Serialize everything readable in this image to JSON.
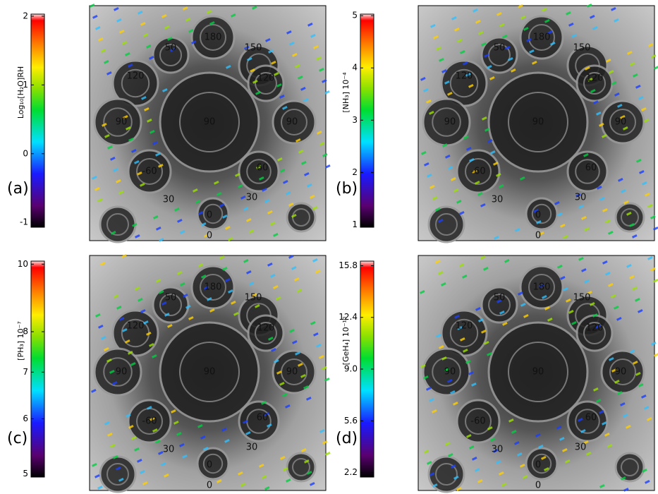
{
  "chart_data": [
    {
      "type": "colorbar",
      "panel_label": "(a)",
      "axis_label": "Log₁₀[H₂O]RH",
      "ylim": [
        -1.07,
        2.03
      ],
      "yticks": [
        -1,
        0,
        1,
        2
      ],
      "log": false
    },
    {
      "type": "colorbar",
      "panel_label": "(b)",
      "axis_label": "[NH₃]  10⁻⁴",
      "ylim": [
        0.95,
        5.03
      ],
      "yticks": [
        1,
        2,
        3,
        4,
        5
      ],
      "log": false
    },
    {
      "type": "colorbar",
      "panel_label": "(c)",
      "axis_label": "[PH₃]  10⁻⁷",
      "ylim": [
        4.95,
        10.1
      ],
      "yticks": [
        5,
        6,
        7,
        8,
        10
      ],
      "log": true
    },
    {
      "type": "colorbar",
      "panel_label": "(d)",
      "axis_label": "[GeH₄]  10⁻¹⁰",
      "ylim": [
        1.9,
        16.1
      ],
      "yticks": [
        {
          "value": 2.2,
          "label": "2.2"
        },
        {
          "value": 5.6,
          "label": "5.6"
        },
        {
          "value": 9,
          "label": "9.0"
        },
        {
          "value": 12.4,
          "label": "12.4"
        },
        {
          "value": 15.8,
          "label": "15.8"
        }
      ],
      "log": false
    }
  ],
  "map_labels": [
    "180",
    "150",
    "50",
    "120",
    "120",
    "90",
    "90",
    "90",
    "60",
    "-60",
    "30",
    "30",
    "0",
    "0"
  ]
}
